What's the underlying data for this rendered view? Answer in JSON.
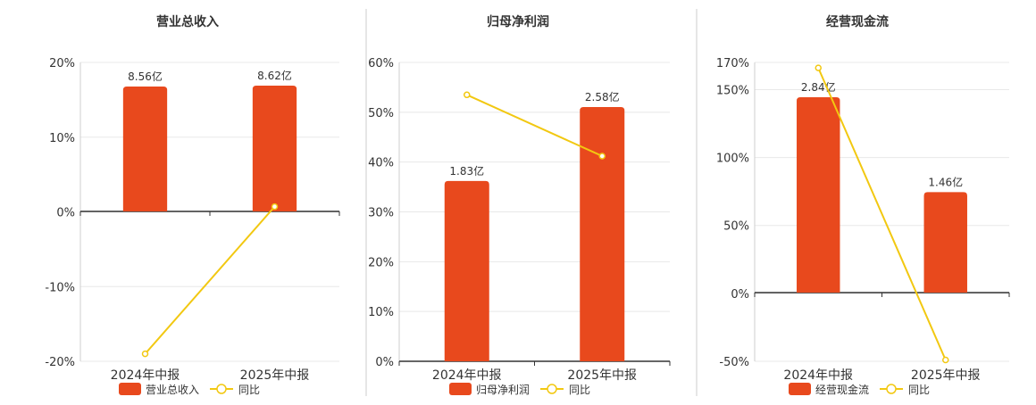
{
  "colors": {
    "bar": "#E8491D",
    "line": "#F2C811",
    "grid": "#e8e8e8",
    "axis": "#333333",
    "text": "#333333",
    "divider": "#cccccc"
  },
  "chart_data": [
    {
      "type": "bar",
      "title": "营业总收入",
      "categories": [
        "2024年中报",
        "2025年中报"
      ],
      "yticks": [
        "20%",
        "10%",
        "0%",
        "-10%",
        "-20%"
      ],
      "ylim": [
        -20,
        20
      ],
      "series": [
        {
          "name": "营业总收入",
          "type": "bar",
          "values": [
            8.56,
            8.62
          ],
          "labels": [
            "8.56亿",
            "8.62亿"
          ]
        },
        {
          "name": "同比",
          "type": "line",
          "values": [
            -19,
            0.7
          ]
        }
      ]
    },
    {
      "type": "bar",
      "title": "归母净利润",
      "categories": [
        "2024年中报",
        "2025年中报"
      ],
      "yticks": [
        "60%",
        "50%",
        "40%",
        "30%",
        "20%",
        "10%",
        "0%"
      ],
      "ylim": [
        0,
        60
      ],
      "series": [
        {
          "name": "归母净利润",
          "type": "bar",
          "values": [
            1.83,
            2.58
          ],
          "labels": [
            "1.83亿",
            "2.58亿"
          ]
        },
        {
          "name": "同比",
          "type": "line",
          "values": [
            53.5,
            41.2
          ]
        }
      ]
    },
    {
      "type": "bar",
      "title": "经营现金流",
      "categories": [
        "2024年中报",
        "2025年中报"
      ],
      "yticks": [
        "170%",
        "150%",
        "100%",
        "50%",
        "0%",
        "-50%"
      ],
      "ylim": [
        -50,
        170
      ],
      "series": [
        {
          "name": "经营现金流",
          "type": "bar",
          "values": [
            2.84,
            1.46
          ],
          "labels": [
            "2.84亿",
            "1.46亿"
          ]
        },
        {
          "name": "同比",
          "type": "line",
          "values": [
            166,
            -49
          ]
        }
      ]
    }
  ]
}
